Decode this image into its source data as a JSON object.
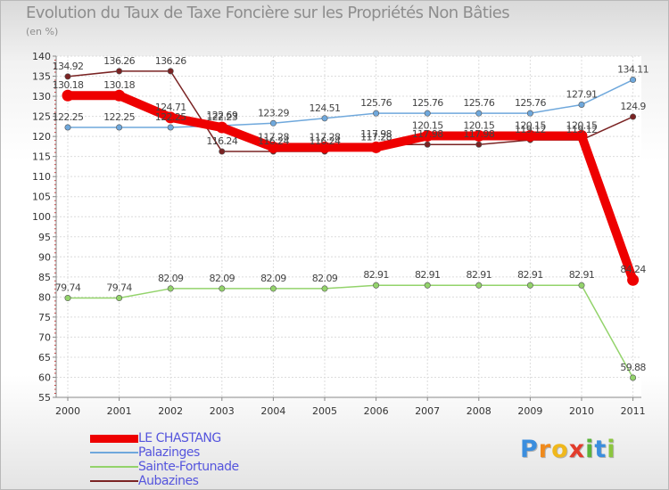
{
  "title": "Evolution du Taux de Taxe Foncière sur les Propriétés Non Bâties",
  "unit": "(en %)",
  "logo": {
    "letters": [
      "P",
      "r",
      "o",
      "x",
      "i",
      "t",
      "i"
    ],
    "colors": [
      "#3b8ede",
      "#f08a1c",
      "#f0b81c",
      "#e23c2c",
      "#5bb33a",
      "#3b8ede",
      "#8cc63f"
    ]
  },
  "chart_data": {
    "type": "line",
    "x": [
      "2000",
      "2001",
      "2002",
      "2003",
      "2004",
      "2005",
      "2006",
      "2007",
      "2008",
      "2009",
      "2010",
      "2011"
    ],
    "ylim": [
      55,
      140
    ],
    "yticks": [
      55,
      60,
      65,
      70,
      75,
      80,
      85,
      90,
      95,
      100,
      105,
      110,
      115,
      120,
      125,
      130,
      135,
      140
    ],
    "grid": true,
    "legend_position": "bottom-left",
    "series": [
      {
        "name": "LE CHASTANG",
        "color": "#ee0000",
        "values": [
          130.18,
          130.18,
          124.71,
          122.23,
          117.28,
          117.28,
          117.28,
          120.15,
          120.15,
          120.15,
          120.15,
          84.24
        ],
        "labels": [
          "130.18",
          "130.18",
          "124.71",
          "122.23",
          "117.28",
          "117.28",
          "117.28",
          "120.15",
          "120.15",
          "120.15",
          "120.15",
          "84.24"
        ]
      },
      {
        "name": "Palazinges",
        "color": "#6fa8dc",
        "values": [
          122.25,
          122.25,
          122.25,
          122.69,
          123.29,
          124.51,
          125.76,
          125.76,
          125.76,
          125.76,
          127.91,
          134.11
        ],
        "labels": [
          "122.25",
          "122.25",
          "122.25",
          "122.69",
          "123.29",
          "124.51",
          "125.76",
          "125.76",
          "125.76",
          "125.76",
          "127.91",
          "134.11"
        ]
      },
      {
        "name": "Sainte-Fortunade",
        "color": "#93d36b",
        "values": [
          79.74,
          79.74,
          82.09,
          82.09,
          82.09,
          82.09,
          82.91,
          82.91,
          82.91,
          82.91,
          82.91,
          59.88
        ],
        "labels": [
          "79.74",
          "79.74",
          "82.09",
          "82.09",
          "82.09",
          "82.09",
          "82.91",
          "82.91",
          "82.91",
          "82.91",
          "82.91",
          "59.88"
        ]
      },
      {
        "name": "Aubazines",
        "color": "#7a2323",
        "values": [
          134.92,
          136.26,
          136.26,
          116.24,
          116.24,
          116.24,
          117.98,
          117.98,
          117.98,
          119.12,
          119.12,
          124.9
        ],
        "labels": [
          "134.92",
          "136.26",
          "136.26",
          "116.24",
          "116.24",
          "116.24",
          "117.98",
          "117.98",
          "117.98",
          "119.12",
          "119.12",
          "124.9"
        ]
      }
    ]
  }
}
